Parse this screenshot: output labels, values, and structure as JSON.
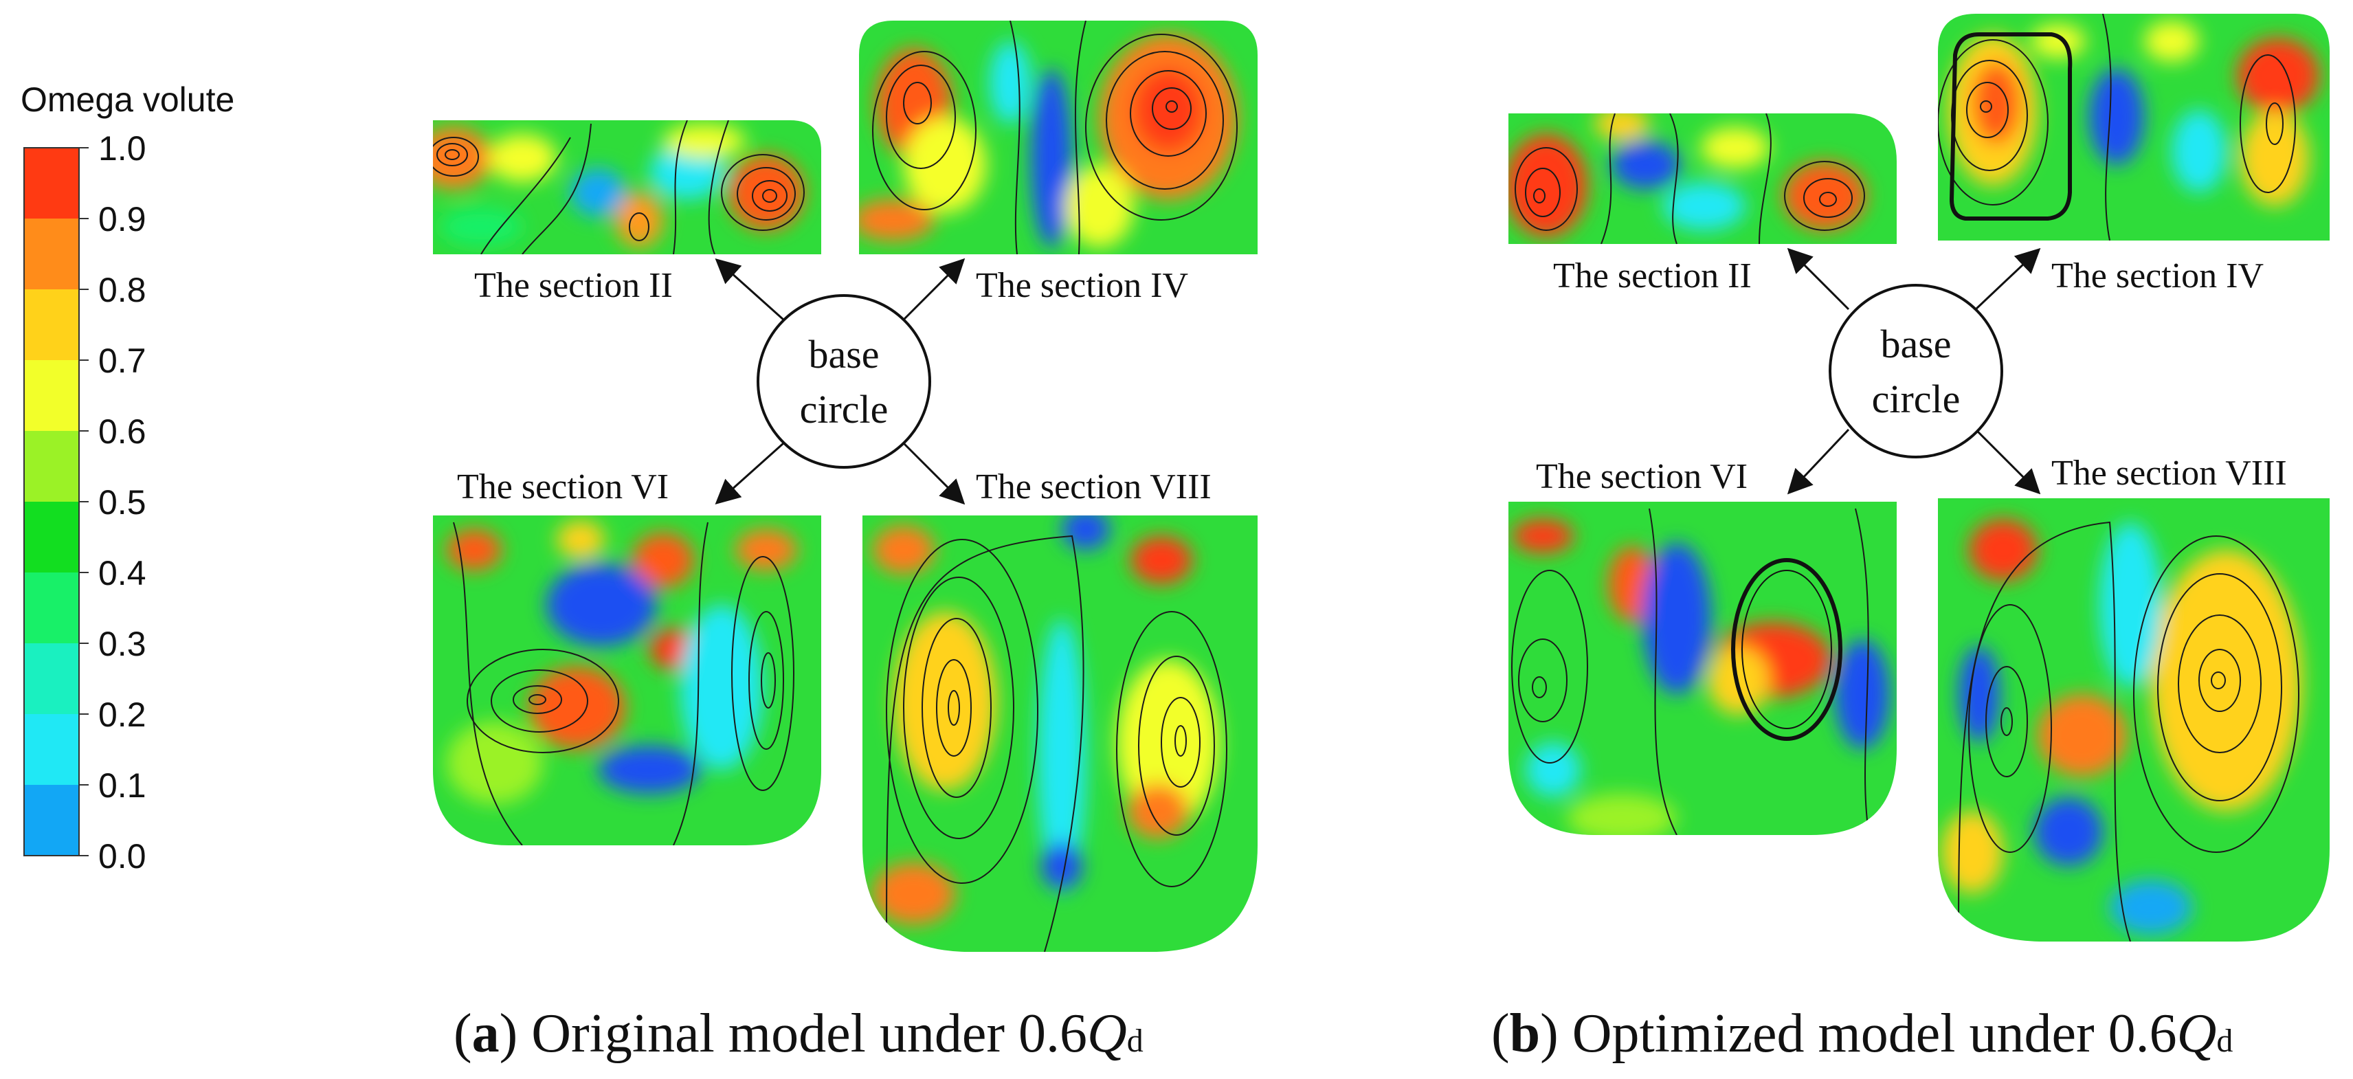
{
  "legend": {
    "title": "Omega volute",
    "ticks": [
      "1.0",
      "0.9",
      "0.8",
      "0.7",
      "0.6",
      "0.5",
      "0.4",
      "0.3",
      "0.2",
      "0.1",
      "0.0"
    ],
    "colors": [
      "#ff3a12",
      "#ff8c1a",
      "#ffd21a",
      "#f2ff2a",
      "#9bf226",
      "#12de20",
      "#18f068",
      "#1af0c0",
      "#20e8f5",
      "#12a7f5",
      "#0a3ff2"
    ]
  },
  "panel_a": {
    "caption_open": "(",
    "caption_letter": "a",
    "caption_text": ") Original model under 0.6",
    "caption_q": "Q",
    "caption_sub": "d",
    "center": [
      "base",
      "circle"
    ],
    "sec_II": "The section II",
    "sec_IV": "The section IV",
    "sec_VI": "The section VI",
    "sec_VIII": "The section VIII"
  },
  "panel_b": {
    "caption_open": "(",
    "caption_letter": "b",
    "caption_text": ") Optimized model under 0.6",
    "caption_q": "Q",
    "caption_sub": "d",
    "center": [
      "base",
      "circle"
    ],
    "sec_II": "The section II",
    "sec_IV": "The section IV",
    "sec_VI": "The section VI",
    "sec_VIII": "The section VIII"
  },
  "colors": {
    "field_base": "#2fdc3a",
    "streamline": "#1a1a1a",
    "text": "#111111"
  }
}
